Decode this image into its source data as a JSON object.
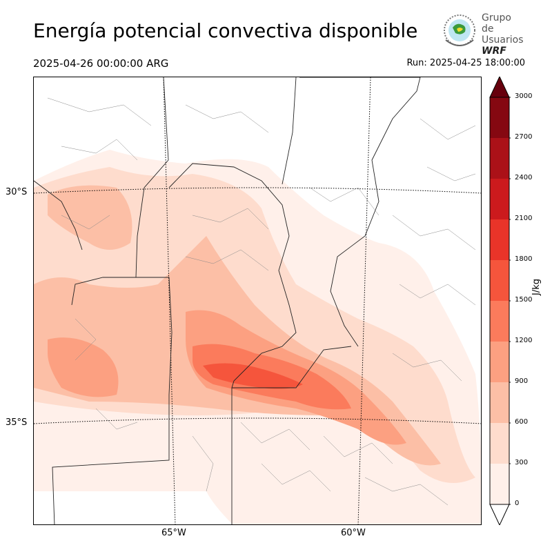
{
  "header": {
    "title": "Energía potencial convectiva disponible",
    "valid_time": "2025-04-26 00:00:00 ARG",
    "run_time": "Run: 2025-04-25 18:00:00"
  },
  "logo": {
    "line1": "Grupo de",
    "line2": "Usuarios",
    "line3": "WRF"
  },
  "map": {
    "lat_labels": [
      "30°S",
      "35°S"
    ],
    "lon_labels": [
      "65°W",
      "60°W"
    ]
  },
  "colorbar": {
    "unit": "J/kg",
    "ticks": [
      "0",
      "300",
      "600",
      "900",
      "1200",
      "1500",
      "1800",
      "2100",
      "2400",
      "2700",
      "3000"
    ],
    "colors": [
      "#fff0ea",
      "#fedccd",
      "#fcbfa6",
      "#fca081",
      "#fb7b5c",
      "#f5553c",
      "#e93429",
      "#cc1a1d",
      "#ab1118",
      "#850811"
    ],
    "over_color": "#67000d"
  }
}
